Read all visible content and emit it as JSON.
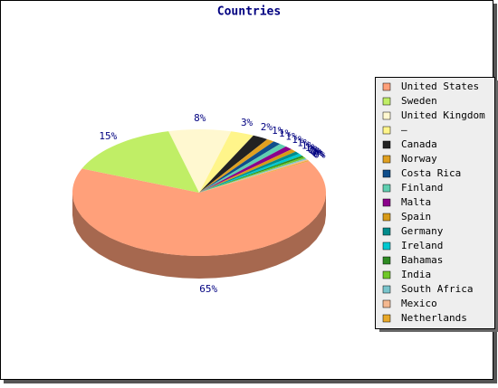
{
  "chart_data": {
    "type": "pie3d",
    "title": "Countries",
    "categories": [
      "United States",
      "Sweden",
      "United Kingdom",
      "–",
      "Canada",
      "Norway",
      "Costa Rica",
      "Finland",
      "Malta",
      "Spain",
      "Germany",
      "Ireland",
      "Bahamas",
      "India",
      "South Africa",
      "Mexico",
      "Netherlands"
    ],
    "values": [
      65,
      15,
      8,
      3,
      2,
      1,
      1,
      1,
      1,
      0.8,
      0.7,
      0.6,
      0.4,
      0.4,
      0.3,
      0.3,
      0.2
    ],
    "value_labels": [
      "65%",
      "15%",
      "8%",
      "3%",
      "2%",
      "1%",
      "1%",
      "1%",
      "1%",
      "1%",
      "1%",
      "1%",
      "0%",
      "0%",
      "0%",
      "0%",
      "0%"
    ],
    "colors": [
      "#ffa07a",
      "#c0ee66",
      "#fff8d0",
      "#fff58a",
      "#222222",
      "#e0a020",
      "#104e8b",
      "#5fcfb0",
      "#8b008b",
      "#d89a18",
      "#008b8b",
      "#00c8d0",
      "#2e8b22",
      "#70c828",
      "#78c4cc",
      "#f4b890",
      "#e8a828"
    ],
    "legend": "right"
  }
}
